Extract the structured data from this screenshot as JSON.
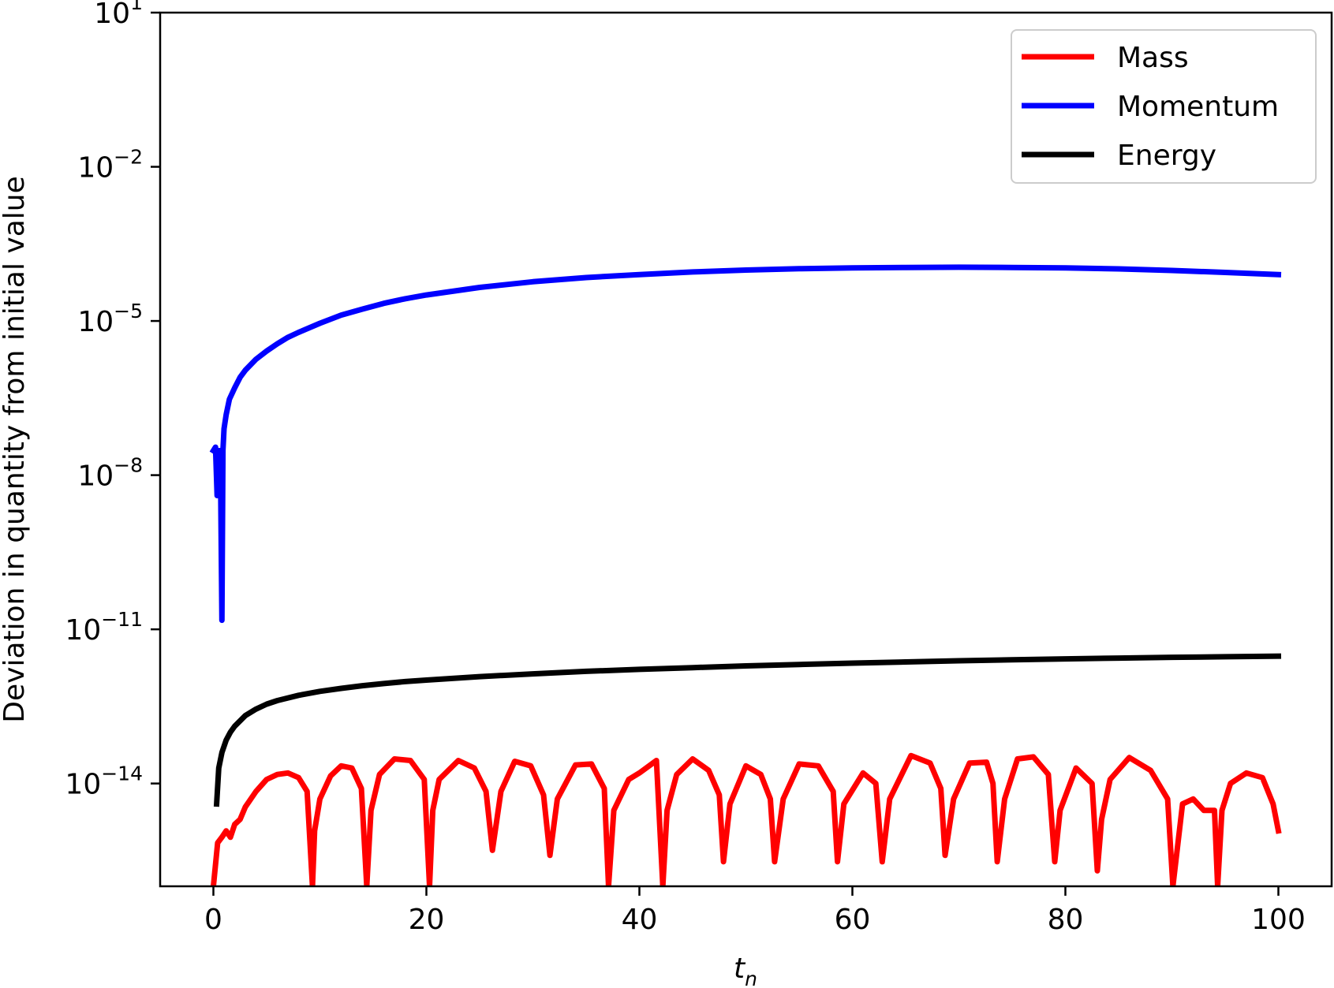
{
  "chart_data": {
    "type": "line",
    "title": "",
    "xlabel": "t",
    "xlabel_subscript": "n",
    "ylabel": "Deviation in quantity from initial value",
    "xscale": "linear",
    "yscale": "log",
    "xlim": [
      -5,
      105
    ],
    "ylim": [
      1e-16,
      10
    ],
    "xticks": [
      0,
      20,
      40,
      60,
      80,
      100
    ],
    "yticks": [
      {
        "base": "10",
        "exp": "1",
        "value": 10
      },
      {
        "base": "10",
        "exp": "−2",
        "value": 0.01
      },
      {
        "base": "10",
        "exp": "−5",
        "value": 1e-05
      },
      {
        "base": "10",
        "exp": "−8",
        "value": 1e-08
      },
      {
        "base": "10",
        "exp": "−11",
        "value": 1e-11
      },
      {
        "base": "10",
        "exp": "−14",
        "value": 1e-14
      }
    ],
    "grid": false,
    "legend_position": "top-right",
    "series": [
      {
        "name": "Mass",
        "color": "#ff0000",
        "x": [
          0,
          0.4,
          0.8,
          1.2,
          1.6,
          2,
          2.5,
          3,
          4,
          5,
          6,
          7,
          8,
          8.8,
          9.3,
          9.5,
          10,
          11,
          12,
          13,
          13.9,
          14.4,
          14.8,
          15.6,
          17,
          18.5,
          19.8,
          20.3,
          20.6,
          21.2,
          23,
          24.5,
          25.6,
          26.2,
          27,
          28.3,
          29.8,
          31,
          31.6,
          32.3,
          34,
          35.5,
          36.7,
          37.1,
          37.6,
          39,
          40,
          41.6,
          42.2,
          42.6,
          43.5,
          45,
          46.5,
          47.5,
          47.9,
          48.5,
          50,
          51.4,
          52.3,
          52.7,
          53.5,
          55,
          56.8,
          58.2,
          58.6,
          59.2,
          61,
          62.2,
          62.8,
          63.5,
          65.5,
          67.3,
          68.3,
          68.7,
          69.5,
          71,
          72.6,
          73.2,
          73.6,
          74.3,
          75.5,
          77,
          78.4,
          79,
          79.5,
          81,
          82.5,
          83,
          83.4,
          84.2,
          86,
          88,
          89.6,
          90.1,
          91,
          92,
          93,
          94,
          94.3,
          94.7,
          95.5,
          97,
          98.5,
          99.5,
          100
        ],
        "y": [
          1e-16,
          7e-16,
          9e-16,
          1.2e-15,
          9e-16,
          1.6e-15,
          2e-15,
          3.5e-15,
          7e-15,
          1.2e-14,
          1.5e-14,
          1.6e-14,
          1.3e-14,
          7e-15,
          1e-16,
          1.2e-15,
          5e-15,
          1.4e-14,
          2.2e-14,
          2e-14,
          8e-15,
          1e-16,
          3e-15,
          1.5e-14,
          3e-14,
          2.8e-14,
          1.2e-14,
          1e-16,
          3e-15,
          1.2e-14,
          2.8e-14,
          2e-14,
          7e-15,
          5e-16,
          7e-15,
          2.7e-14,
          2.2e-14,
          6e-15,
          4e-16,
          5e-15,
          2.3e-14,
          2.4e-14,
          8e-15,
          1e-16,
          3e-15,
          1.2e-14,
          1.6e-14,
          2.8e-14,
          1e-16,
          3e-15,
          1.5e-14,
          3e-14,
          1.8e-14,
          6e-15,
          3e-16,
          4e-15,
          2.2e-14,
          1.5e-14,
          5e-15,
          3e-16,
          5e-15,
          2.4e-14,
          2.2e-14,
          7e-15,
          3e-16,
          4e-15,
          1.6e-14,
          1e-14,
          3e-16,
          5e-15,
          3.5e-14,
          2.5e-14,
          8e-15,
          4e-16,
          5e-15,
          2.5e-14,
          2.6e-14,
          1e-14,
          3e-16,
          5e-15,
          3e-14,
          3.3e-14,
          1.5e-14,
          3e-16,
          3e-15,
          2e-14,
          1e-14,
          2e-16,
          2e-15,
          1.2e-14,
          3.2e-14,
          1.8e-14,
          5e-15,
          1e-16,
          4e-15,
          5e-15,
          3e-15,
          3e-15,
          1e-16,
          3e-15,
          1e-14,
          1.6e-14,
          1.3e-14,
          4e-15,
          1.2e-15
        ]
      },
      {
        "name": "Momentum",
        "color": "#0000ff",
        "x": [
          0,
          0.2,
          0.35,
          0.5,
          0.65,
          0.8,
          0.9,
          1.0,
          1.2,
          1.5,
          2,
          2.5,
          3,
          4,
          5,
          6,
          7,
          8,
          10,
          12,
          14,
          16,
          18,
          20,
          25,
          30,
          35,
          40,
          45,
          50,
          55,
          60,
          65,
          70,
          75,
          80,
          85,
          90,
          95,
          100
        ],
        "y": [
          3e-08,
          3.5e-08,
          4e-09,
          3e-08,
          3e-08,
          1.5e-11,
          3e-08,
          8e-08,
          1.5e-07,
          3e-07,
          5e-07,
          8e-07,
          1.1e-06,
          1.8e-06,
          2.6e-06,
          3.6e-06,
          4.8e-06,
          6e-06,
          9e-06,
          1.3e-05,
          1.7e-05,
          2.2e-05,
          2.7e-05,
          3.2e-05,
          4.5e-05,
          5.8e-05,
          7e-05,
          8e-05,
          9e-05,
          9.8e-05,
          0.000104,
          0.000108,
          0.00011,
          0.000111,
          0.00011,
          0.000108,
          0.000103,
          9.6e-05,
          8.8e-05,
          8e-05
        ]
      },
      {
        "name": "Energy",
        "color": "#000000",
        "x": [
          0.3,
          0.5,
          0.8,
          1.2,
          1.6,
          2,
          3,
          4,
          5,
          6,
          8,
          10,
          12,
          14,
          16,
          18,
          20,
          25,
          30,
          35,
          40,
          45,
          50,
          55,
          60,
          65,
          70,
          75,
          80,
          85,
          90,
          95,
          100
        ],
        "y": [
          4e-15,
          2e-14,
          4e-14,
          7e-14,
          1e-13,
          1.3e-13,
          2.1e-13,
          2.8e-13,
          3.5e-13,
          4.1e-13,
          5.2e-13,
          6.2e-13,
          7.1e-13,
          8e-13,
          8.8e-13,
          9.6e-13,
          1.03e-12,
          1.2e-12,
          1.36e-12,
          1.52e-12,
          1.66e-12,
          1.8e-12,
          1.94e-12,
          2.07e-12,
          2.2e-12,
          2.32e-12,
          2.44e-12,
          2.55e-12,
          2.66e-12,
          2.76e-12,
          2.85e-12,
          2.93e-12,
          3e-12
        ]
      }
    ]
  }
}
